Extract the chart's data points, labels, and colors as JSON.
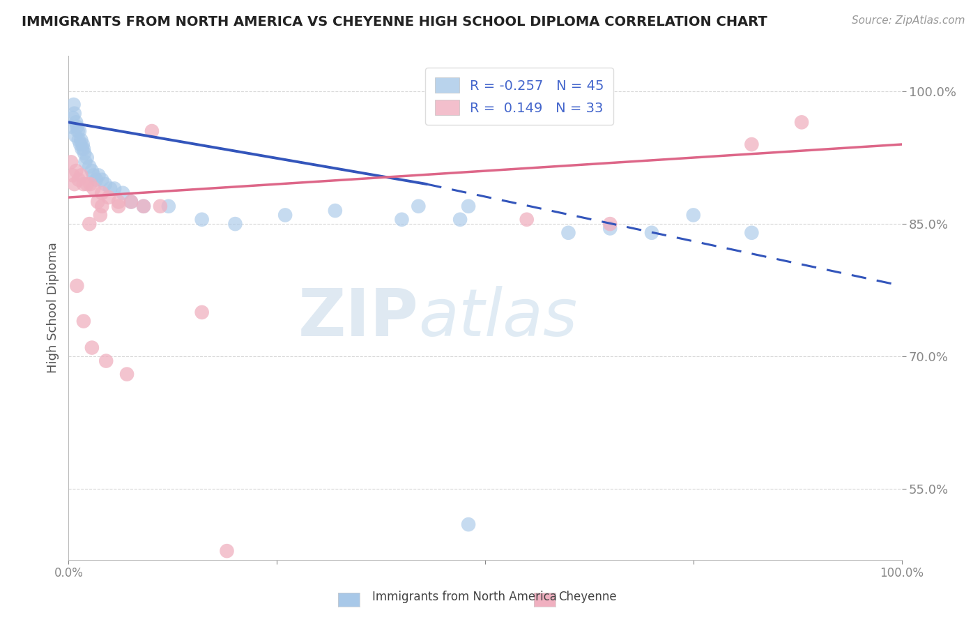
{
  "title": "IMMIGRANTS FROM NORTH AMERICA VS CHEYENNE HIGH SCHOOL DIPLOMA CORRELATION CHART",
  "source": "Source: ZipAtlas.com",
  "ylabel": "High School Diploma",
  "xlim": [
    0,
    1.0
  ],
  "ylim": [
    0.47,
    1.04
  ],
  "ytick_positions": [
    0.55,
    0.7,
    0.85,
    1.0
  ],
  "ytick_labels": [
    "55.0%",
    "70.0%",
    "85.0%",
    "100.0%"
  ],
  "blue_color": "#a8c8e8",
  "pink_color": "#f0b0c0",
  "blue_line_color": "#3355bb",
  "pink_line_color": "#dd6688",
  "R_blue": -0.257,
  "N_blue": 45,
  "R_pink": 0.149,
  "N_pink": 33,
  "legend_text_color": "#4466cc",
  "title_color": "#222222",
  "grid_color": "#cccccc",
  "blue_line_start_x": 0.0,
  "blue_line_start_y": 0.965,
  "blue_line_solid_end_x": 0.43,
  "blue_line_solid_end_y": 0.895,
  "blue_line_dash_end_x": 1.0,
  "blue_line_dash_end_y": 0.78,
  "pink_line_start_x": 0.0,
  "pink_line_start_y": 0.88,
  "pink_line_end_x": 1.0,
  "pink_line_end_y": 0.94,
  "blue_scatter_x": [
    0.003,
    0.005,
    0.006,
    0.007,
    0.008,
    0.009,
    0.01,
    0.011,
    0.012,
    0.013,
    0.014,
    0.015,
    0.016,
    0.017,
    0.018,
    0.019,
    0.02,
    0.022,
    0.025,
    0.028,
    0.03,
    0.033,
    0.036,
    0.04,
    0.044,
    0.05,
    0.055,
    0.065,
    0.075,
    0.09,
    0.12,
    0.16,
    0.2,
    0.26,
    0.32,
    0.4,
    0.42,
    0.47,
    0.48,
    0.6,
    0.65,
    0.7,
    0.75,
    0.82,
    0.48
  ],
  "blue_scatter_y": [
    0.96,
    0.97,
    0.985,
    0.975,
    0.95,
    0.965,
    0.96,
    0.955,
    0.945,
    0.955,
    0.94,
    0.945,
    0.935,
    0.94,
    0.935,
    0.93,
    0.92,
    0.925,
    0.915,
    0.91,
    0.905,
    0.9,
    0.905,
    0.9,
    0.895,
    0.89,
    0.89,
    0.885,
    0.875,
    0.87,
    0.87,
    0.855,
    0.85,
    0.86,
    0.865,
    0.855,
    0.87,
    0.855,
    0.87,
    0.84,
    0.845,
    0.84,
    0.86,
    0.84,
    0.51
  ],
  "pink_scatter_x": [
    0.003,
    0.005,
    0.007,
    0.009,
    0.012,
    0.015,
    0.018,
    0.022,
    0.026,
    0.03,
    0.035,
    0.04,
    0.048,
    0.06,
    0.075,
    0.09,
    0.11,
    0.04,
    0.06,
    0.16,
    0.025,
    0.038,
    0.1,
    0.55,
    0.65,
    0.82,
    0.88,
    0.01,
    0.018,
    0.028,
    0.045,
    0.07,
    0.19
  ],
  "pink_scatter_y": [
    0.92,
    0.905,
    0.895,
    0.91,
    0.9,
    0.905,
    0.895,
    0.895,
    0.895,
    0.89,
    0.875,
    0.885,
    0.88,
    0.87,
    0.875,
    0.87,
    0.87,
    0.87,
    0.875,
    0.75,
    0.85,
    0.86,
    0.955,
    0.855,
    0.85,
    0.94,
    0.965,
    0.78,
    0.74,
    0.71,
    0.695,
    0.68,
    0.48
  ]
}
